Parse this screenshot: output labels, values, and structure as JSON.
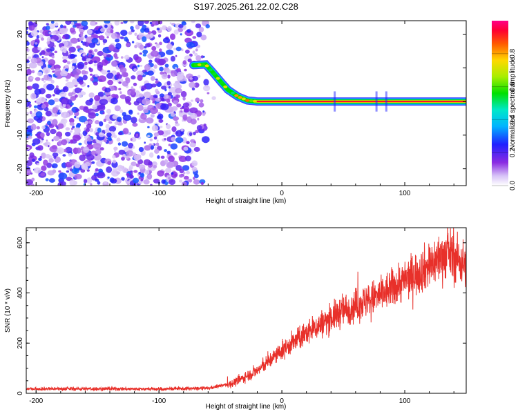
{
  "title": "S197.2025.261.22.02.C28",
  "chart_data": [
    {
      "type": "heatmap",
      "xlabel": "Height of straight line (km)",
      "ylabel": "Frequency (Hz)",
      "xlim": [
        -208,
        150
      ],
      "ylim": [
        -25,
        24
      ],
      "xticks": [
        -200,
        -100,
        0,
        100
      ],
      "yticks": [
        -20,
        -10,
        0,
        10,
        20
      ],
      "colorbar": {
        "label": "Normalized spectral amplitude",
        "range": [
          0,
          1
        ],
        "ticks": [
          0.0,
          0.2,
          0.4,
          0.6,
          0.8
        ]
      },
      "noise_region": {
        "x_range": [
          -208,
          -55
        ],
        "y_range": [
          -25,
          24
        ],
        "amplitude_range": [
          0.05,
          0.3
        ]
      },
      "signal_trace": [
        {
          "x": -72,
          "y": 10.8
        },
        {
          "x": -62,
          "y": 11.0
        },
        {
          "x": -57,
          "y": 9.0
        },
        {
          "x": -50,
          "y": 6.0
        },
        {
          "x": -44,
          "y": 3.5
        },
        {
          "x": -36,
          "y": 1.5
        },
        {
          "x": -28,
          "y": 0.3
        },
        {
          "x": -20,
          "y": 0.0
        },
        {
          "x": 0,
          "y": 0.0
        },
        {
          "x": 50,
          "y": 0.0
        },
        {
          "x": 100,
          "y": 0.0
        },
        {
          "x": 150,
          "y": 0.0
        }
      ]
    },
    {
      "type": "line",
      "xlabel": "Height of straight line (km)",
      "ylabel": "SNR (10 * v/v)",
      "xlim": [
        -208,
        150
      ],
      "ylim": [
        0,
        660
      ],
      "xticks": [
        -200,
        -100,
        0,
        100
      ],
      "yticks": [
        0,
        200,
        400,
        600
      ],
      "series": [
        {
          "color": "#e8302a",
          "envelope_x": [
            -208,
            -150,
            -100,
            -60,
            -40,
            -20,
            0,
            20,
            50,
            80,
            100,
            120,
            135,
            150
          ],
          "envelope_y": [
            18,
            18,
            17,
            20,
            40,
            90,
            170,
            240,
            330,
            390,
            450,
            510,
            560,
            510
          ]
        }
      ]
    }
  ]
}
